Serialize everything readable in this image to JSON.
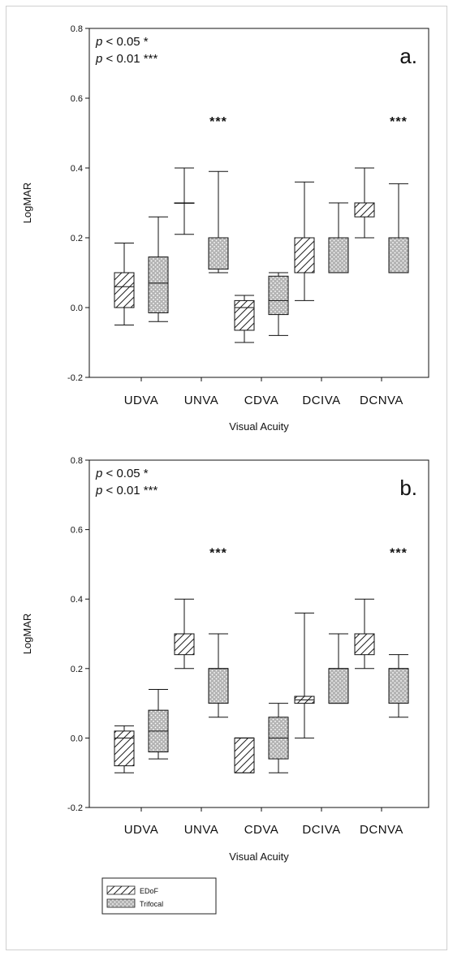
{
  "chart_data": [
    {
      "type": "box",
      "panel": "a.",
      "ylabel": "LogMAR",
      "xlabel": "Visual Acuity",
      "ylim": [
        -0.2,
        0.8
      ],
      "yticks": [
        "-0.2",
        "0.0",
        "0.2",
        "0.4",
        "0.6",
        "0.8"
      ],
      "ytick_values": [
        -0.2,
        0.0,
        0.2,
        0.4,
        0.6,
        0.8
      ],
      "categories": [
        "UDVA",
        "UNVA",
        "CDVA",
        "DCIVA",
        "DCNVA"
      ],
      "annotations": [
        {
          "p": "p",
          "rest": " < 0.05 *"
        },
        {
          "p": "p",
          "rest": " < 0.01 ***"
        }
      ],
      "significance": [
        "",
        "***",
        "",
        "",
        "***"
      ],
      "series": [
        {
          "name": "EDoF",
          "boxes": [
            {
              "min": -0.05,
              "q1": 0.0,
              "median": 0.06,
              "q3": 0.1,
              "max": 0.185
            },
            {
              "min": 0.21,
              "q1": 0.3,
              "median": 0.3,
              "q3": 0.3,
              "max": 0.4
            },
            {
              "min": -0.1,
              "q1": -0.065,
              "median": 0.0,
              "q3": 0.02,
              "max": 0.035
            },
            {
              "min": 0.02,
              "q1": 0.1,
              "median": 0.2,
              "q3": 0.2,
              "max": 0.36
            },
            {
              "min": 0.2,
              "q1": 0.26,
              "median": 0.3,
              "q3": 0.3,
              "max": 0.4
            }
          ]
        },
        {
          "name": "Trifocal",
          "boxes": [
            {
              "min": -0.04,
              "q1": -0.015,
              "median": 0.07,
              "q3": 0.145,
              "max": 0.26
            },
            {
              "min": 0.1,
              "q1": 0.11,
              "median": 0.2,
              "q3": 0.2,
              "max": 0.39
            },
            {
              "min": -0.08,
              "q1": -0.02,
              "median": 0.02,
              "q3": 0.09,
              "max": 0.1
            },
            {
              "min": 0.1,
              "q1": 0.1,
              "median": 0.2,
              "q3": 0.2,
              "max": 0.3
            },
            {
              "min": 0.1,
              "q1": 0.1,
              "median": 0.2,
              "q3": 0.2,
              "max": 0.355
            }
          ]
        }
      ]
    },
    {
      "type": "box",
      "panel": "b.",
      "ylabel": "LogMAR",
      "xlabel": "Visual Acuity",
      "ylim": [
        -0.2,
        0.8
      ],
      "yticks": [
        "-0.2",
        "0.0",
        "0.2",
        "0.4",
        "0.6",
        "0.8"
      ],
      "ytick_values": [
        -0.2,
        0.0,
        0.2,
        0.4,
        0.6,
        0.8
      ],
      "categories": [
        "UDVA",
        "UNVA",
        "CDVA",
        "DCIVA",
        "DCNVA"
      ],
      "annotations": [
        {
          "p": "p",
          "rest": " < 0.05 *"
        },
        {
          "p": "p",
          "rest": " < 0.01 ***"
        }
      ],
      "significance": [
        "",
        "***",
        "",
        "",
        "***"
      ],
      "series": [
        {
          "name": "EDoF",
          "boxes": [
            {
              "min": -0.1,
              "q1": -0.08,
              "median": 0.0,
              "q3": 0.02,
              "max": 0.035
            },
            {
              "min": 0.2,
              "q1": 0.24,
              "median": 0.3,
              "q3": 0.3,
              "max": 0.4
            },
            {
              "min": -0.1,
              "q1": -0.1,
              "median": 0.0,
              "q3": 0.0,
              "max": 0.0
            },
            {
              "min": 0.0,
              "q1": 0.1,
              "median": 0.11,
              "q3": 0.12,
              "max": 0.36
            },
            {
              "min": 0.2,
              "q1": 0.24,
              "median": 0.3,
              "q3": 0.3,
              "max": 0.4
            }
          ]
        },
        {
          "name": "Trifocal",
          "boxes": [
            {
              "min": -0.06,
              "q1": -0.04,
              "median": 0.02,
              "q3": 0.08,
              "max": 0.14
            },
            {
              "min": 0.06,
              "q1": 0.1,
              "median": 0.2,
              "q3": 0.2,
              "max": 0.3
            },
            {
              "min": -0.1,
              "q1": -0.06,
              "median": 0.0,
              "q3": 0.06,
              "max": 0.1
            },
            {
              "min": 0.1,
              "q1": 0.1,
              "median": 0.2,
              "q3": 0.2,
              "max": 0.3
            },
            {
              "min": 0.06,
              "q1": 0.1,
              "median": 0.2,
              "q3": 0.2,
              "max": 0.24
            }
          ]
        }
      ]
    }
  ],
  "legend": [
    {
      "name": "EDoF",
      "pattern": "hatch"
    },
    {
      "name": "Trifocal",
      "pattern": "dots"
    }
  ],
  "colors": {
    "line": "#111111",
    "trifocal_fill": "#b5b5b5"
  }
}
